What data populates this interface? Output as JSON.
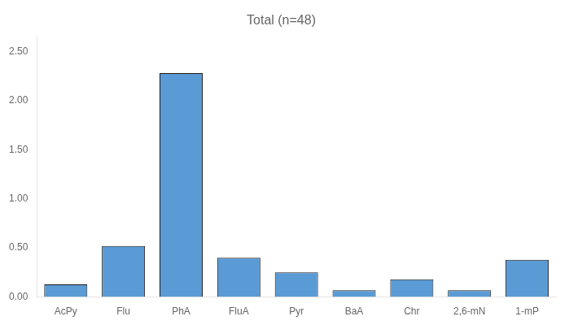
{
  "chart_data": {
    "type": "bar",
    "title": "Total (n=48)",
    "categories": [
      "AcPy",
      "Flu",
      "PhA",
      "FluA",
      "Pyr",
      "BaA",
      "Chr",
      "2,6-mN",
      "1-mP"
    ],
    "values": [
      0.13,
      0.52,
      2.28,
      0.4,
      0.25,
      0.07,
      0.18,
      0.07,
      0.38
    ],
    "color": "#5B9BD5",
    "ylim": [
      0,
      2.65
    ],
    "yticks": [
      {
        "value": 0,
        "label": "0.00"
      },
      {
        "value": 0.5,
        "label": "0.50"
      },
      {
        "value": 1,
        "label": "1.00"
      },
      {
        "value": 1.5,
        "label": "1.50"
      },
      {
        "value": 2,
        "label": "2.00"
      },
      {
        "value": 2.5,
        "label": "2.50"
      }
    ],
    "grid": false
  }
}
